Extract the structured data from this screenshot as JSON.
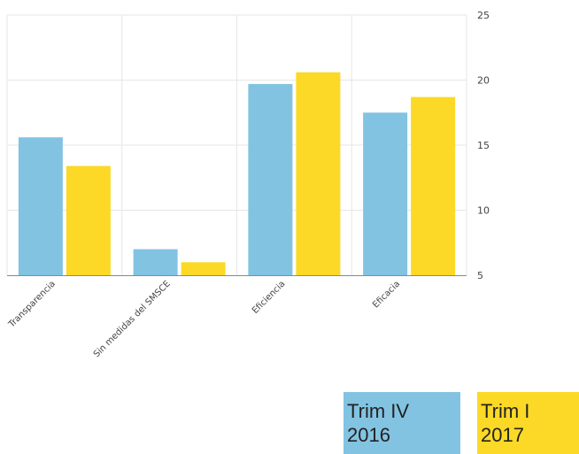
{
  "chart_data": {
    "type": "bar",
    "categories": [
      "Transparencia",
      "Sin medidas del SMSCE",
      "Eficiencia",
      "Eficacia"
    ],
    "series": [
      {
        "name": "Trim IV 2016",
        "values": [
          15.6,
          7.0,
          19.7,
          17.5
        ],
        "color": "#82c3e2"
      },
      {
        "name": "Trim I 2017",
        "values": [
          13.4,
          6.0,
          20.6,
          18.7
        ],
        "color": "#fbd926"
      }
    ],
    "ylim": [
      5,
      25
    ],
    "yticks": [
      5,
      10,
      15,
      20,
      25
    ],
    "y_axis_side": "right",
    "grid": true,
    "legend_position": "bottom-right",
    "title": "",
    "xlabel": "",
    "ylabel": ""
  },
  "legend": {
    "items": [
      {
        "line1": "Trim IV",
        "line2": "2016"
      },
      {
        "line1": "Trim I",
        "line2": "2017"
      }
    ]
  }
}
